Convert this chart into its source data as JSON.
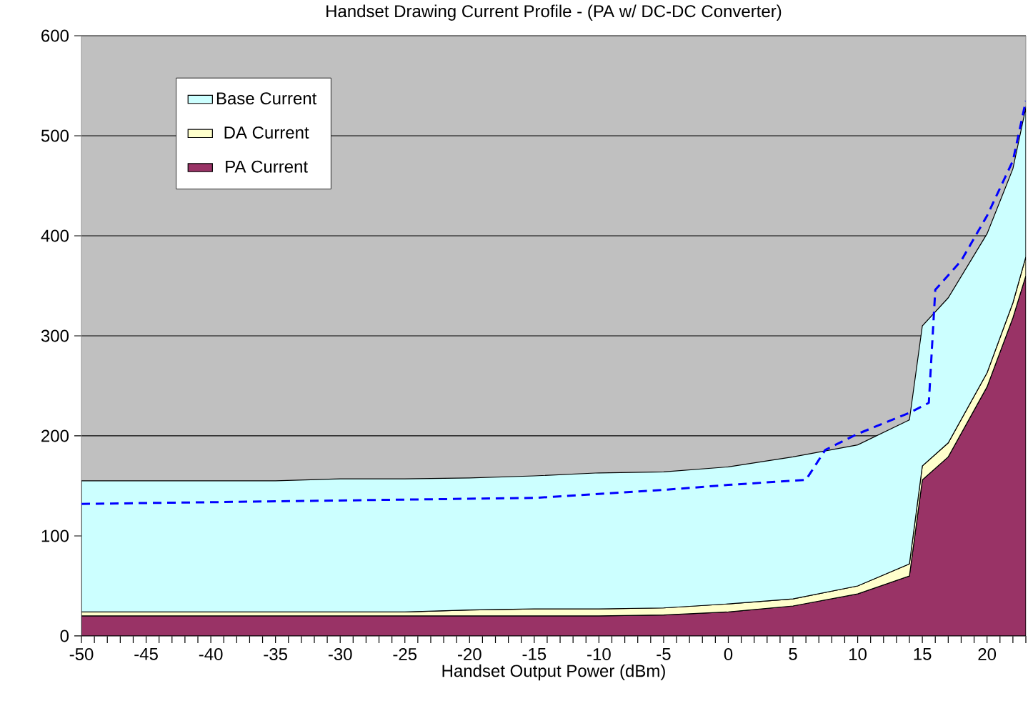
{
  "chart_data": {
    "type": "area",
    "title": "Handset Drawing Current Profile - (PA w/ DC-DC Converter)",
    "xlabel": "Handset Output Power (dBm)",
    "stacked": true,
    "x": [
      -50,
      -45,
      -40,
      -35,
      -30,
      -25,
      -20,
      -15,
      -10,
      -5,
      0,
      5,
      10,
      14,
      15,
      17,
      20,
      22,
      23
    ],
    "series": [
      {
        "name": "PA Current",
        "color": "#993366",
        "values": [
          20,
          20,
          20,
          20,
          20,
          20,
          20,
          20,
          20,
          21,
          24,
          30,
          42,
          60,
          156,
          179,
          249,
          318,
          360
        ]
      },
      {
        "name": "DA Current",
        "color": "#ffffcc",
        "values": [
          4,
          4,
          4,
          4,
          4,
          4,
          6,
          7,
          7,
          7,
          8,
          7,
          8,
          12,
          14,
          14,
          14,
          15,
          19
        ]
      },
      {
        "name": "Base Current",
        "color": "#ccffff",
        "values": [
          131,
          131,
          131,
          131,
          133,
          133,
          132,
          133,
          136,
          136,
          137,
          142,
          141,
          144,
          140,
          145,
          139,
          134,
          149
        ]
      },
      {
        "type": "line",
        "line_style": "dashed",
        "color": "#0000ff",
        "x": [
          -50,
          -15,
          -5,
          0,
          6,
          7.5,
          10,
          14,
          15.5,
          16,
          18,
          20,
          22,
          23
        ],
        "values": [
          132,
          138,
          146,
          151,
          156,
          186,
          202,
          223,
          233,
          346,
          375,
          420,
          475,
          535
        ]
      }
    ],
    "xlim": [
      -50,
      23
    ],
    "ylim": [
      0,
      600
    ],
    "xticks": [
      -50,
      {
        "value": -49,
        "label": null
      },
      {
        "value": -48,
        "label": null
      },
      {
        "value": -47,
        "label": null
      },
      {
        "value": -46,
        "label": null
      },
      -45,
      {
        "value": -44,
        "label": null
      },
      {
        "value": -43,
        "label": null
      },
      {
        "value": -42,
        "label": null
      },
      {
        "value": -41,
        "label": null
      },
      -40,
      {
        "value": -39,
        "label": null
      },
      {
        "value": -38,
        "label": null
      },
      {
        "value": -37,
        "label": null
      },
      {
        "value": -36,
        "label": null
      },
      -35,
      {
        "value": -34,
        "label": null
      },
      {
        "value": -33,
        "label": null
      },
      {
        "value": -32,
        "label": null
      },
      {
        "value": -31,
        "label": null
      },
      -30,
      {
        "value": -29,
        "label": null
      },
      {
        "value": -28,
        "label": null
      },
      {
        "value": -27,
        "label": null
      },
      {
        "value": -26,
        "label": null
      },
      -25,
      {
        "value": -24,
        "label": null
      },
      {
        "value": -23,
        "label": null
      },
      {
        "value": -22,
        "label": null
      },
      {
        "value": -21,
        "label": null
      },
      -20,
      {
        "value": -19,
        "label": null
      },
      {
        "value": -18,
        "label": null
      },
      {
        "value": -17,
        "label": null
      },
      {
        "value": -16,
        "label": null
      },
      -15,
      {
        "value": -14,
        "label": null
      },
      {
        "value": -13,
        "label": null
      },
      {
        "value": -12,
        "label": null
      },
      {
        "value": -11,
        "label": null
      },
      -10,
      {
        "value": -9,
        "label": null
      },
      {
        "value": -8,
        "label": null
      },
      {
        "value": -7,
        "label": null
      },
      {
        "value": -6,
        "label": null
      },
      -5,
      {
        "value": -4,
        "label": null
      },
      {
        "value": -3,
        "label": null
      },
      {
        "value": -2,
        "label": null
      },
      {
        "value": -1,
        "label": null
      },
      0,
      {
        "value": 1,
        "label": null
      },
      {
        "value": 2,
        "label": null
      },
      {
        "value": 3,
        "label": null
      },
      {
        "value": 4,
        "label": null
      },
      5,
      {
        "value": 6,
        "label": null
      },
      {
        "value": 7,
        "label": null
      },
      {
        "value": 8,
        "label": null
      },
      {
        "value": 9,
        "label": null
      },
      10,
      {
        "value": 11,
        "label": null
      },
      {
        "value": 12,
        "label": null
      },
      {
        "value": 13,
        "label": null
      },
      {
        "value": 14,
        "label": null
      },
      15,
      {
        "value": 16,
        "label": null
      },
      {
        "value": 17,
        "label": null
      },
      {
        "value": 18,
        "label": null
      },
      {
        "value": 19,
        "label": null
      },
      20,
      {
        "value": 21,
        "label": null
      },
      {
        "value": 22,
        "label": null
      },
      {
        "value": 23,
        "label": null
      }
    ],
    "yticks": [
      0,
      100,
      200,
      300,
      400,
      500,
      600
    ],
    "grid": "y",
    "legend": "top left"
  }
}
